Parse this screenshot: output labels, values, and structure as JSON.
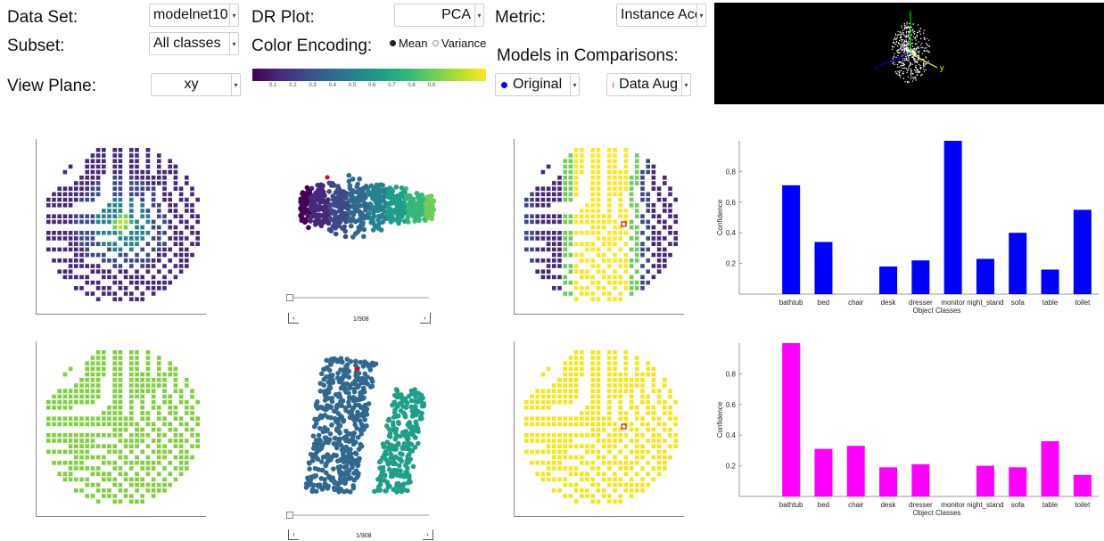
{
  "controls": {
    "dataset_label": "Data Set:",
    "dataset_value": "modelnet10",
    "subset_label": "Subset:",
    "subset_value": "All classes",
    "viewplane_label": "View Plane:",
    "viewplane_value": "xy",
    "drplot_label": "DR Plot:",
    "drplot_value": "PCA",
    "color_encoding_label": "Color Encoding:",
    "mean_label": "Mean",
    "variance_label": "Variance",
    "metric_label": "Metric:",
    "metric_value": "Instance Acc",
    "models_label": "Models in Comparisons:",
    "model1_value": "Original",
    "model2_value": "Data Aug"
  },
  "colorbar_ticks": [
    "0.1",
    "0.2",
    "0.3",
    "0.4",
    "0.5",
    "0.6",
    "0.7",
    "0.8",
    "0.9"
  ],
  "colors": {
    "model1": "#0000ff",
    "model2": "#ff00ff",
    "viewer_bg": "#000000"
  },
  "viewer": {
    "axis_z": "z",
    "axis_y": "y",
    "axis_x": "x"
  },
  "dr_nav": {
    "counter_top": "1/908",
    "counter_bottom": "1/908"
  },
  "chart_data": [
    {
      "type": "bar",
      "categories": [
        "bathtub",
        "bed",
        "chair",
        "desk",
        "dresser",
        "monitor",
        "night_stand",
        "sofa",
        "table",
        "toilet"
      ],
      "series": [
        {
          "name": "Original",
          "values": [
            0.71,
            0.34,
            0.0,
            0.18,
            0.22,
            1.0,
            0.23,
            0.4,
            0.16,
            0.55
          ]
        }
      ],
      "xlabel": "Object Classes",
      "ylabel": "Confidence",
      "yticks": [
        "0.2",
        "0.4",
        "0.6",
        "0.8"
      ],
      "ylim": [
        0,
        1.0
      ]
    },
    {
      "type": "bar",
      "categories": [
        "bathtub",
        "bed",
        "chair",
        "desk",
        "dresser",
        "monitor",
        "night_stand",
        "sofa",
        "table",
        "toilet"
      ],
      "series": [
        {
          "name": "Data Aug",
          "values": [
            1.0,
            0.31,
            0.33,
            0.19,
            0.21,
            0.0,
            0.2,
            0.19,
            0.36,
            0.14
          ]
        }
      ],
      "xlabel": "Object Classes",
      "ylabel": "Confidence",
      "yticks": [
        "0.2",
        "0.4",
        "0.6",
        "0.8"
      ],
      "ylim": [
        0,
        1.0
      ]
    }
  ]
}
